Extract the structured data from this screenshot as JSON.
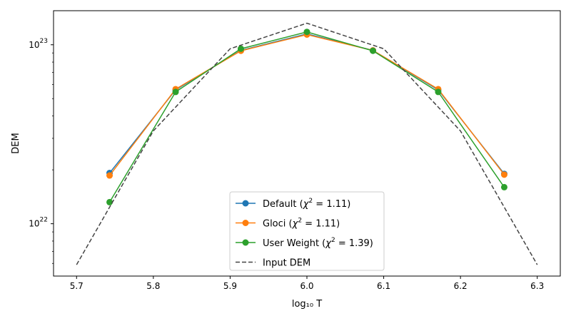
{
  "chart_data": {
    "type": "line",
    "title": "",
    "xlabel": "log₁₀ T",
    "ylabel": "DEM",
    "y_scale": "log",
    "xlim": [
      5.67,
      6.33
    ],
    "ylim": [
      5.1e+21,
      1.55e+23
    ],
    "grid": false,
    "legend_position": "lower center",
    "x_ticks": [
      "5.7",
      "5.8",
      "5.9",
      "6.0",
      "6.1",
      "6.2",
      "6.3"
    ],
    "y_ticks": [
      {
        "value": 1e+22,
        "base": "10",
        "exp": "22"
      },
      {
        "value": 1e+23,
        "base": "10",
        "exp": "23"
      }
    ],
    "series": [
      {
        "name": "Default (χ² = 1.11)",
        "label_main": "Default (",
        "label_chi": "χ",
        "label_sup": "2",
        "label_rest": " = 1.11)",
        "color": "#1f77b4",
        "style": "solid-marker",
        "x": [
          5.743,
          5.829,
          5.914,
          6.0,
          6.086,
          6.171,
          6.257
        ],
        "y": [
          1.92e+22,
          5.6e+22,
          9.3e+22,
          1.15e+23,
          9.3e+22,
          5.6e+22,
          1.9e+22
        ]
      },
      {
        "name": "Gloci (χ² = 1.11)",
        "label_main": "Gloci (",
        "label_chi": "χ",
        "label_sup": "2",
        "label_rest": " = 1.11)",
        "color": "#ff7f0e",
        "style": "solid-marker",
        "x": [
          5.743,
          5.829,
          5.914,
          6.0,
          6.086,
          6.171,
          6.257
        ],
        "y": [
          1.86e+22,
          5.65e+22,
          9.25e+22,
          1.14e+23,
          9.3e+22,
          5.65e+22,
          1.88e+22
        ]
      },
      {
        "name": "User Weight (χ² = 1.39)",
        "label_main": "User Weight (",
        "label_chi": "χ",
        "label_sup": "2",
        "label_rest": " = 1.39)",
        "color": "#2ca02c",
        "style": "solid-marker",
        "x": [
          5.743,
          5.829,
          5.914,
          6.0,
          6.086,
          6.171,
          6.257
        ],
        "y": [
          1.32e+22,
          5.45e+22,
          9.5e+22,
          1.18e+23,
          9.25e+22,
          5.45e+22,
          1.6e+22
        ]
      },
      {
        "name": "Input DEM",
        "label_main": "Input DEM",
        "label_chi": "",
        "label_sup": "",
        "label_rest": "",
        "color": "#444444",
        "style": "dashed",
        "x": [
          5.7,
          5.8,
          5.9,
          6.0,
          6.1,
          6.2,
          6.3
        ],
        "y": [
          5.9e+21,
          3.3e+22,
          9.5e+22,
          1.32e+23,
          9.5e+22,
          3.3e+22,
          5.9e+21
        ]
      }
    ]
  }
}
